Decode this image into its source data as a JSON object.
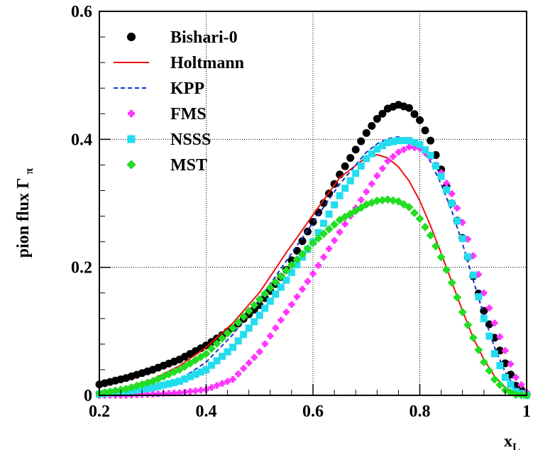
{
  "chart_data": {
    "type": "line",
    "xlabel": "x",
    "xlabel_sub": "L",
    "ylabel": "pion flux Γ",
    "ylabel_sub": "π",
    "xlim": [
      0.2,
      1.0
    ],
    "ylim": [
      0,
      0.6
    ],
    "xticks": [
      "0.2",
      "0.4",
      "0.6",
      "0.8",
      "1"
    ],
    "yticks": [
      "0",
      "0.2",
      "0.4",
      "0.6"
    ],
    "grid": true,
    "legend_position": "top-left",
    "series": [
      {
        "name": "Bishari-0",
        "style": "markers-circle",
        "color": "#000000",
        "x": [
          0.2,
          0.25,
          0.3,
          0.35,
          0.4,
          0.45,
          0.5,
          0.55,
          0.6,
          0.65,
          0.7,
          0.72,
          0.74,
          0.76,
          0.78,
          0.8,
          0.82,
          0.84,
          0.86,
          0.88,
          0.9,
          0.92,
          0.94,
          0.96,
          0.98,
          1.0
        ],
        "y": [
          0.017,
          0.027,
          0.04,
          0.056,
          0.078,
          0.105,
          0.141,
          0.196,
          0.271,
          0.345,
          0.41,
          0.432,
          0.448,
          0.454,
          0.449,
          0.43,
          0.398,
          0.353,
          0.3,
          0.246,
          0.186,
          0.132,
          0.09,
          0.05,
          0.015,
          0.002
        ]
      },
      {
        "name": "Holtmann",
        "style": "line-solid",
        "color": "#ee1111",
        "x": [
          0.2,
          0.25,
          0.3,
          0.35,
          0.4,
          0.45,
          0.5,
          0.55,
          0.6,
          0.65,
          0.7,
          0.72,
          0.74,
          0.76,
          0.78,
          0.8,
          0.82,
          0.84,
          0.86,
          0.88,
          0.9,
          0.92,
          0.94,
          0.96,
          0.98,
          1.0
        ],
        "y": [
          0.004,
          0.012,
          0.025,
          0.046,
          0.075,
          0.113,
          0.161,
          0.223,
          0.282,
          0.34,
          0.372,
          0.376,
          0.371,
          0.357,
          0.335,
          0.304,
          0.265,
          0.222,
          0.177,
          0.132,
          0.09,
          0.056,
          0.03,
          0.012,
          0.003,
          0.0
        ]
      },
      {
        "name": "KPP",
        "style": "line-dashed",
        "color": "#1133cc",
        "x": [
          0.2,
          0.25,
          0.3,
          0.35,
          0.4,
          0.45,
          0.5,
          0.55,
          0.6,
          0.65,
          0.7,
          0.72,
          0.74,
          0.76,
          0.78,
          0.8,
          0.82,
          0.84,
          0.86,
          0.88,
          0.9,
          0.92,
          0.94,
          0.96,
          0.98,
          1.0
        ],
        "y": [
          0.001,
          0.004,
          0.01,
          0.024,
          0.052,
          0.095,
          0.15,
          0.21,
          0.27,
          0.33,
          0.38,
          0.393,
          0.401,
          0.404,
          0.4,
          0.388,
          0.365,
          0.33,
          0.288,
          0.237,
          0.18,
          0.125,
          0.075,
          0.036,
          0.01,
          0.0
        ]
      },
      {
        "name": "FMS",
        "style": "markers-cross",
        "color": "#ff33ff",
        "x": [
          0.2,
          0.25,
          0.3,
          0.35,
          0.4,
          0.45,
          0.5,
          0.55,
          0.6,
          0.65,
          0.7,
          0.72,
          0.74,
          0.76,
          0.78,
          0.8,
          0.82,
          0.84,
          0.86,
          0.88,
          0.9,
          0.92,
          0.94,
          0.96,
          0.98,
          1.0
        ],
        "y": [
          0.0,
          0.0,
          0.002,
          0.004,
          0.009,
          0.025,
          0.068,
          0.13,
          0.19,
          0.255,
          0.318,
          0.343,
          0.366,
          0.38,
          0.388,
          0.386,
          0.372,
          0.348,
          0.315,
          0.27,
          0.218,
          0.16,
          0.113,
          0.07,
          0.028,
          0.005
        ]
      },
      {
        "name": "NSSS",
        "style": "markers-square",
        "color": "#22ddee",
        "x": [
          0.2,
          0.25,
          0.3,
          0.35,
          0.4,
          0.45,
          0.5,
          0.55,
          0.6,
          0.65,
          0.7,
          0.72,
          0.74,
          0.76,
          0.78,
          0.8,
          0.82,
          0.84,
          0.86,
          0.88,
          0.9,
          0.92,
          0.94,
          0.96,
          0.98,
          1.0
        ],
        "y": [
          0.002,
          0.006,
          0.012,
          0.022,
          0.04,
          0.075,
          0.125,
          0.18,
          0.24,
          0.312,
          0.37,
          0.385,
          0.395,
          0.398,
          0.398,
          0.392,
          0.375,
          0.342,
          0.3,
          0.245,
          0.188,
          0.12,
          0.065,
          0.028,
          0.006,
          0.0
        ]
      },
      {
        "name": "MST",
        "style": "markers-diamond",
        "color": "#22dd22",
        "x": [
          0.2,
          0.25,
          0.3,
          0.35,
          0.4,
          0.45,
          0.5,
          0.55,
          0.6,
          0.65,
          0.7,
          0.72,
          0.74,
          0.76,
          0.78,
          0.8,
          0.82,
          0.84,
          0.86,
          0.88,
          0.9,
          0.92,
          0.94,
          0.96,
          0.98,
          1.0
        ],
        "y": [
          0.003,
          0.01,
          0.022,
          0.04,
          0.065,
          0.105,
          0.15,
          0.195,
          0.238,
          0.274,
          0.298,
          0.304,
          0.306,
          0.303,
          0.294,
          0.276,
          0.25,
          0.216,
          0.176,
          0.13,
          0.09,
          0.052,
          0.025,
          0.008,
          0.001,
          0.0
        ]
      }
    ]
  }
}
